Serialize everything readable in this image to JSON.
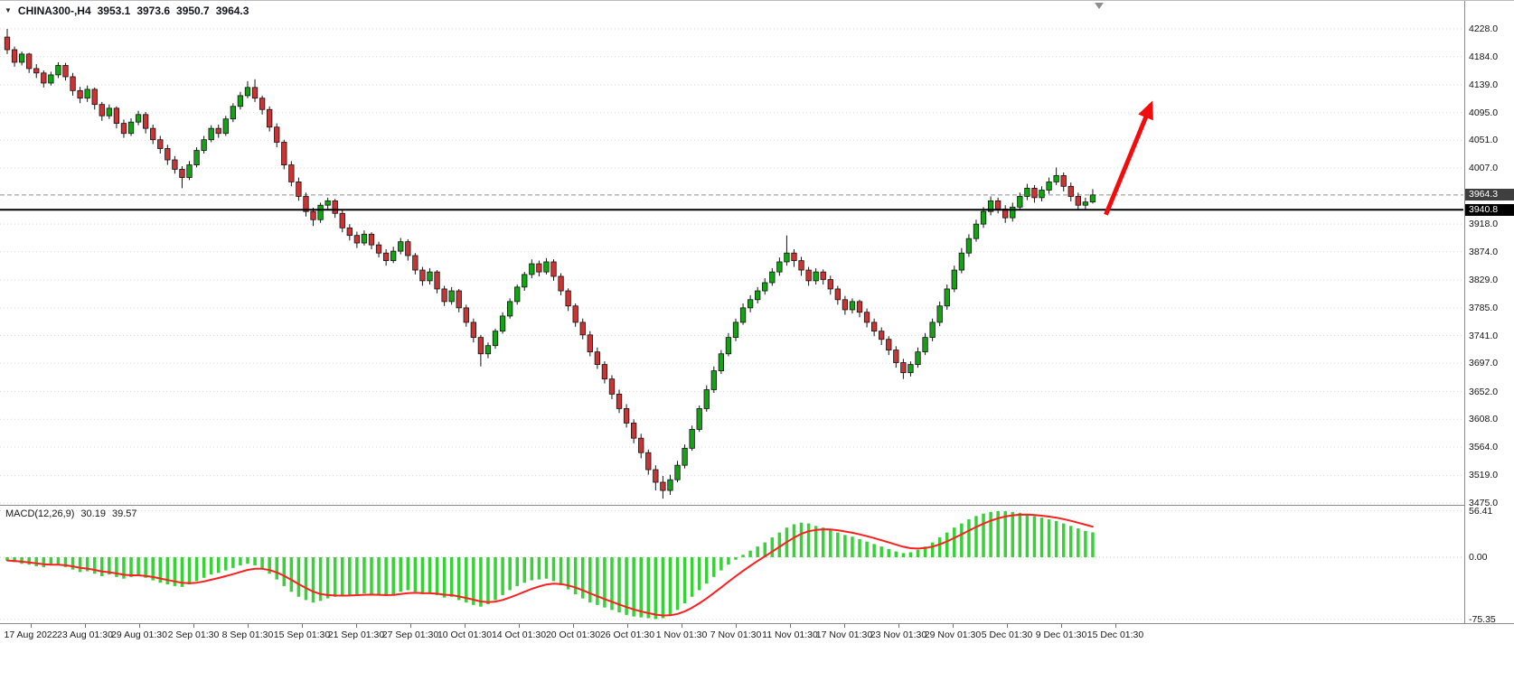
{
  "symbol_bar": {
    "marker_glyph": "▼",
    "symbol_period": "CHINA300-,H4",
    "open": "3953.1",
    "high": "3973.6",
    "low": "3950.7",
    "close": "3964.3"
  },
  "macd": {
    "label": "MACD(12,26,9)",
    "main_value": "30.19",
    "signal_value": "39.57",
    "axis_labels": [
      "56.41",
      "0.00",
      "-75.35"
    ]
  },
  "price_axis": {
    "labels": [
      "4228.0",
      "4184.0",
      "4139.0",
      "4095.0",
      "4051.0",
      "4007.0",
      "3918.0",
      "3874.0",
      "3829.0",
      "3785.0",
      "3741.0",
      "3697.0",
      "3652.0",
      "3608.0",
      "3564.0",
      "3519.0",
      "3475.0"
    ],
    "tag_current": "3964.3",
    "tag_hline": "3940.8"
  },
  "time_axis": {
    "labels": [
      "17 Aug 2022",
      "23 Aug 01:30",
      "29 Aug 01:30",
      "2 Sep 01:30",
      "8 Sep 01:30",
      "15 Sep 01:30",
      "21 Sep 01:30",
      "27 Sep 01:30",
      "10 Oct 01:30",
      "14 Oct 01:30",
      "20 Oct 01:30",
      "26 Oct 01:30",
      "1 Nov 01:30",
      "7 Nov 01:30",
      "11 Nov 01:30",
      "17 Nov 01:30",
      "23 Nov 01:30",
      "29 Nov 01:30",
      "5 Dec 01:30",
      "9 Dec 01:30",
      "15 Dec 01:30"
    ]
  },
  "colors": {
    "up": "#13a413",
    "down": "#cb3434",
    "wick": "#141414",
    "candle_border": "#141414",
    "grid": "#d9d9d9",
    "grid_zero": "#c6c6c6",
    "hline": "#000000",
    "current_line": "#8f8f8f",
    "macd_hist": "#38d138",
    "macd_signal": "#ff1f1f",
    "arrow": "#f10d0d",
    "tag_current_bg": "#3f3f3f",
    "tag_hline_bg": "#000000",
    "separator": "#8a8a8a"
  },
  "chart_data": {
    "type": "candlestick",
    "symbol": "CHINA300-",
    "timeframe": "H4",
    "ylim": [
      3475,
      4228
    ],
    "current_price": 3964.3,
    "horizontal_line": 3940.8,
    "last": {
      "open": 3953.1,
      "high": 3973.6,
      "low": 3950.7,
      "close": 3964.3
    },
    "candles": [
      [
        4215,
        4228,
        4188,
        4195
      ],
      [
        4195,
        4200,
        4168,
        4175
      ],
      [
        4175,
        4192,
        4170,
        4188
      ],
      [
        4188,
        4190,
        4158,
        4165
      ],
      [
        4165,
        4172,
        4150,
        4158
      ],
      [
        4158,
        4162,
        4135,
        4142
      ],
      [
        4142,
        4160,
        4138,
        4155
      ],
      [
        4155,
        4175,
        4150,
        4170
      ],
      [
        4170,
        4174,
        4146,
        4152
      ],
      [
        4152,
        4158,
        4122,
        4130
      ],
      [
        4130,
        4136,
        4110,
        4118
      ],
      [
        4118,
        4138,
        4112,
        4132
      ],
      [
        4132,
        4135,
        4100,
        4108
      ],
      [
        4108,
        4112,
        4082,
        4090
      ],
      [
        4090,
        4108,
        4085,
        4102
      ],
      [
        4102,
        4105,
        4070,
        4078
      ],
      [
        4078,
        4084,
        4055,
        4062
      ],
      [
        4062,
        4086,
        4058,
        4080
      ],
      [
        4080,
        4098,
        4075,
        4092
      ],
      [
        4092,
        4096,
        4062,
        4070
      ],
      [
        4070,
        4076,
        4045,
        4052
      ],
      [
        4052,
        4058,
        4030,
        4038
      ],
      [
        4038,
        4044,
        4012,
        4020
      ],
      [
        4020,
        4026,
        3998,
        4005
      ],
      [
        4005,
        4010,
        3975,
        3992
      ],
      [
        3992,
        4018,
        3988,
        4012
      ],
      [
        4012,
        4040,
        4008,
        4035
      ],
      [
        4035,
        4058,
        4030,
        4052
      ],
      [
        4052,
        4075,
        4048,
        4070
      ],
      [
        4070,
        4076,
        4055,
        4062
      ],
      [
        4062,
        4090,
        4058,
        4085
      ],
      [
        4085,
        4110,
        4080,
        4105
      ],
      [
        4105,
        4128,
        4100,
        4122
      ],
      [
        4122,
        4145,
        4118,
        4135
      ],
      [
        4135,
        4148,
        4112,
        4118
      ],
      [
        4118,
        4122,
        4092,
        4100
      ],
      [
        4100,
        4105,
        4065,
        4072
      ],
      [
        4072,
        4078,
        4040,
        4048
      ],
      [
        4048,
        4052,
        4005,
        4012
      ],
      [
        4012,
        4018,
        3978,
        3985
      ],
      [
        3985,
        3992,
        3955,
        3962
      ],
      [
        3962,
        3968,
        3930,
        3938
      ],
      [
        3938,
        3944,
        3915,
        3925
      ],
      [
        3925,
        3952,
        3920,
        3948
      ],
      [
        3948,
        3960,
        3942,
        3955
      ],
      [
        3955,
        3958,
        3928,
        3935
      ],
      [
        3935,
        3940,
        3905,
        3912
      ],
      [
        3912,
        3918,
        3892,
        3900
      ],
      [
        3900,
        3906,
        3880,
        3888
      ],
      [
        3888,
        3908,
        3884,
        3902
      ],
      [
        3902,
        3905,
        3878,
        3885
      ],
      [
        3885,
        3890,
        3865,
        3872
      ],
      [
        3872,
        3878,
        3852,
        3860
      ],
      [
        3860,
        3882,
        3856,
        3875
      ],
      [
        3875,
        3896,
        3870,
        3890
      ],
      [
        3890,
        3894,
        3860,
        3868
      ],
      [
        3868,
        3872,
        3838,
        3845
      ],
      [
        3845,
        3850,
        3820,
        3828
      ],
      [
        3828,
        3848,
        3822,
        3842
      ],
      [
        3842,
        3845,
        3808,
        3815
      ],
      [
        3815,
        3820,
        3788,
        3795
      ],
      [
        3795,
        3818,
        3790,
        3812
      ],
      [
        3812,
        3815,
        3778,
        3785
      ],
      [
        3785,
        3790,
        3755,
        3762
      ],
      [
        3762,
        3768,
        3730,
        3738
      ],
      [
        3738,
        3742,
        3692,
        3712
      ],
      [
        3712,
        3730,
        3705,
        3725
      ],
      [
        3725,
        3752,
        3720,
        3748
      ],
      [
        3748,
        3778,
        3744,
        3772
      ],
      [
        3772,
        3800,
        3768,
        3795
      ],
      [
        3795,
        3822,
        3790,
        3818
      ],
      [
        3818,
        3842,
        3812,
        3838
      ],
      [
        3838,
        3862,
        3832,
        3855
      ],
      [
        3855,
        3860,
        3835,
        3842
      ],
      [
        3842,
        3864,
        3838,
        3858
      ],
      [
        3858,
        3862,
        3828,
        3835
      ],
      [
        3835,
        3840,
        3805,
        3812
      ],
      [
        3812,
        3816,
        3780,
        3788
      ],
      [
        3788,
        3792,
        3755,
        3762
      ],
      [
        3762,
        3768,
        3735,
        3742
      ],
      [
        3742,
        3748,
        3708,
        3715
      ],
      [
        3715,
        3722,
        3688,
        3695
      ],
      [
        3695,
        3700,
        3665,
        3672
      ],
      [
        3672,
        3678,
        3640,
        3648
      ],
      [
        3648,
        3655,
        3618,
        3625
      ],
      [
        3625,
        3632,
        3595,
        3602
      ],
      [
        3602,
        3608,
        3570,
        3578
      ],
      [
        3578,
        3585,
        3546,
        3555
      ],
      [
        3555,
        3560,
        3520,
        3528
      ],
      [
        3528,
        3535,
        3495,
        3508
      ],
      [
        3508,
        3518,
        3482,
        3495
      ],
      [
        3495,
        3520,
        3488,
        3512
      ],
      [
        3512,
        3542,
        3508,
        3535
      ],
      [
        3535,
        3568,
        3530,
        3562
      ],
      [
        3562,
        3598,
        3558,
        3592
      ],
      [
        3592,
        3630,
        3588,
        3625
      ],
      [
        3625,
        3662,
        3620,
        3655
      ],
      [
        3655,
        3692,
        3650,
        3685
      ],
      [
        3685,
        3718,
        3680,
        3712
      ],
      [
        3712,
        3745,
        3708,
        3738
      ],
      [
        3738,
        3768,
        3732,
        3762
      ],
      [
        3762,
        3792,
        3758,
        3785
      ],
      [
        3785,
        3805,
        3778,
        3798
      ],
      [
        3798,
        3818,
        3792,
        3812
      ],
      [
        3812,
        3832,
        3806,
        3825
      ],
      [
        3825,
        3848,
        3820,
        3842
      ],
      [
        3842,
        3865,
        3836,
        3858
      ],
      [
        3858,
        3900,
        3852,
        3872
      ],
      [
        3872,
        3878,
        3850,
        3860
      ],
      [
        3860,
        3866,
        3836,
        3845
      ],
      [
        3845,
        3850,
        3820,
        3828
      ],
      [
        3828,
        3848,
        3822,
        3842
      ],
      [
        3842,
        3846,
        3822,
        3830
      ],
      [
        3830,
        3836,
        3806,
        3815
      ],
      [
        3815,
        3820,
        3790,
        3798
      ],
      [
        3798,
        3804,
        3774,
        3782
      ],
      [
        3782,
        3800,
        3776,
        3795
      ],
      [
        3795,
        3798,
        3770,
        3778
      ],
      [
        3778,
        3784,
        3754,
        3762
      ],
      [
        3762,
        3768,
        3740,
        3748
      ],
      [
        3748,
        3754,
        3726,
        3735
      ],
      [
        3735,
        3740,
        3710,
        3718
      ],
      [
        3718,
        3724,
        3690,
        3698
      ],
      [
        3698,
        3704,
        3672,
        3682
      ],
      [
        3682,
        3700,
        3676,
        3695
      ],
      [
        3695,
        3722,
        3690,
        3715
      ],
      [
        3715,
        3745,
        3710,
        3738
      ],
      [
        3738,
        3768,
        3732,
        3762
      ],
      [
        3762,
        3795,
        3756,
        3788
      ],
      [
        3788,
        3822,
        3782,
        3815
      ],
      [
        3815,
        3852,
        3810,
        3845
      ],
      [
        3845,
        3880,
        3840,
        3872
      ],
      [
        3872,
        3902,
        3866,
        3895
      ],
      [
        3895,
        3925,
        3890,
        3918
      ],
      [
        3918,
        3945,
        3912,
        3938
      ],
      [
        3938,
        3962,
        3932,
        3955
      ],
      [
        3955,
        3960,
        3935,
        3942
      ],
      [
        3942,
        3948,
        3920,
        3928
      ],
      [
        3928,
        3952,
        3922,
        3945
      ],
      [
        3945,
        3968,
        3940,
        3962
      ],
      [
        3962,
        3982,
        3956,
        3975
      ],
      [
        3975,
        3980,
        3952,
        3960
      ],
      [
        3960,
        3978,
        3954,
        3972
      ],
      [
        3972,
        3992,
        3966,
        3985
      ],
      [
        3985,
        4008,
        3980,
        3995
      ],
      [
        3995,
        4000,
        3970,
        3978
      ],
      [
        3978,
        3984,
        3954,
        3962
      ],
      [
        3962,
        3968,
        3940,
        3948
      ],
      [
        3948,
        3960,
        3942,
        3953.1
      ],
      [
        3953.1,
        3973.6,
        3950.7,
        3964.3
      ]
    ],
    "indicator": {
      "name": "MACD",
      "params": [
        12,
        26,
        9
      ],
      "main_last": 30.19,
      "signal_last": 39.57,
      "ylim": [
        -75.35,
        56.41
      ],
      "histogram": [
        -4,
        -6,
        -8,
        -9,
        -11,
        -12,
        -10,
        -9,
        -12,
        -15,
        -18,
        -17,
        -20,
        -23,
        -21,
        -24,
        -26,
        -24,
        -22,
        -25,
        -28,
        -31,
        -33,
        -35,
        -36,
        -33,
        -29,
        -25,
        -21,
        -19,
        -16,
        -13,
        -10,
        -8,
        -10,
        -14,
        -20,
        -27,
        -35,
        -42,
        -48,
        -52,
        -55,
        -53,
        -50,
        -48,
        -47,
        -46,
        -45,
        -44,
        -45,
        -46,
        -47,
        -45,
        -42,
        -40,
        -42,
        -45,
        -44,
        -46,
        -49,
        -48,
        -52,
        -55,
        -58,
        -60,
        -57,
        -52,
        -46,
        -40,
        -35,
        -31,
        -28,
        -27,
        -26,
        -29,
        -34,
        -39,
        -45,
        -50,
        -55,
        -58,
        -61,
        -64,
        -67,
        -70,
        -72,
        -73,
        -74,
        -75,
        -74,
        -70,
        -64,
        -56,
        -48,
        -40,
        -32,
        -24,
        -16,
        -9,
        -3,
        3,
        8,
        13,
        18,
        24,
        30,
        36,
        40,
        42,
        41,
        38,
        36,
        33,
        30,
        27,
        25,
        22,
        19,
        16,
        13,
        10,
        7,
        5,
        6,
        9,
        13,
        18,
        24,
        30,
        36,
        41,
        46,
        50,
        53,
        55,
        56,
        56,
        55,
        54,
        52,
        50,
        48,
        46,
        44,
        41,
        38,
        35,
        32,
        30.19
      ]
    },
    "trend_arrow": {
      "from_bar": 150.8,
      "from_price": 3933,
      "to_bar": 157,
      "to_price": 4108
    }
  }
}
